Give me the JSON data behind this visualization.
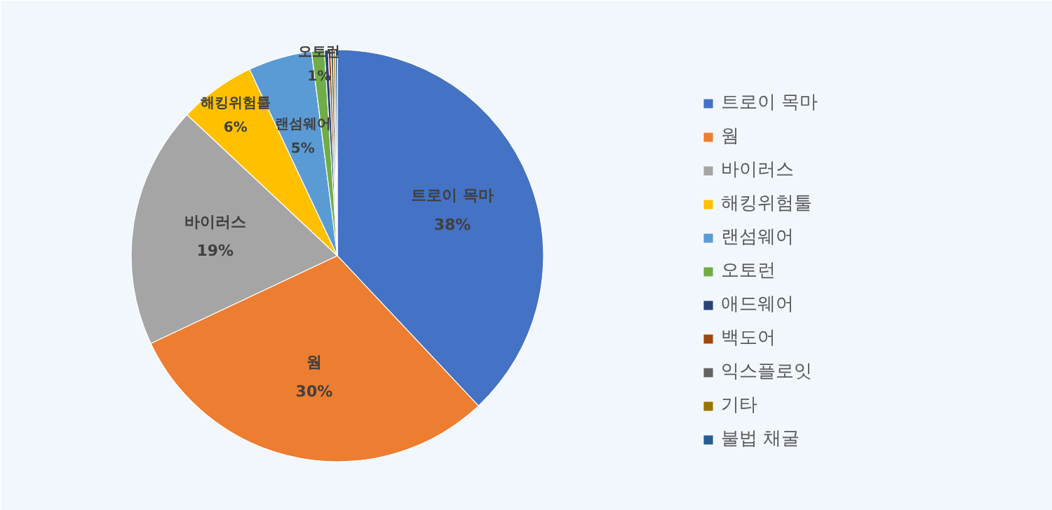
{
  "chart_data": {
    "type": "pie",
    "categories": [
      "트로이 목마",
      "웜",
      "바이러스",
      "해킹위험툴",
      "랜섬웨어",
      "오토런",
      "애드웨어",
      "백도어",
      "익스플로잇",
      "기타",
      "불법 채굴"
    ],
    "values": [
      38,
      30,
      19,
      6,
      5,
      1,
      0.3,
      0.2,
      0.2,
      0.15,
      0.15
    ],
    "value_labels": [
      "38%",
      "30%",
      "19%",
      "6%",
      "5%",
      "1%",
      null,
      null,
      null,
      null,
      null
    ],
    "colors": [
      "#4472c4",
      "#ed7d31",
      "#a5a5a5",
      "#ffc000",
      "#5b9bd5",
      "#70ad47",
      "#264478",
      "#9e480e",
      "#636363",
      "#997300",
      "#255e91"
    ],
    "legend": "right"
  }
}
